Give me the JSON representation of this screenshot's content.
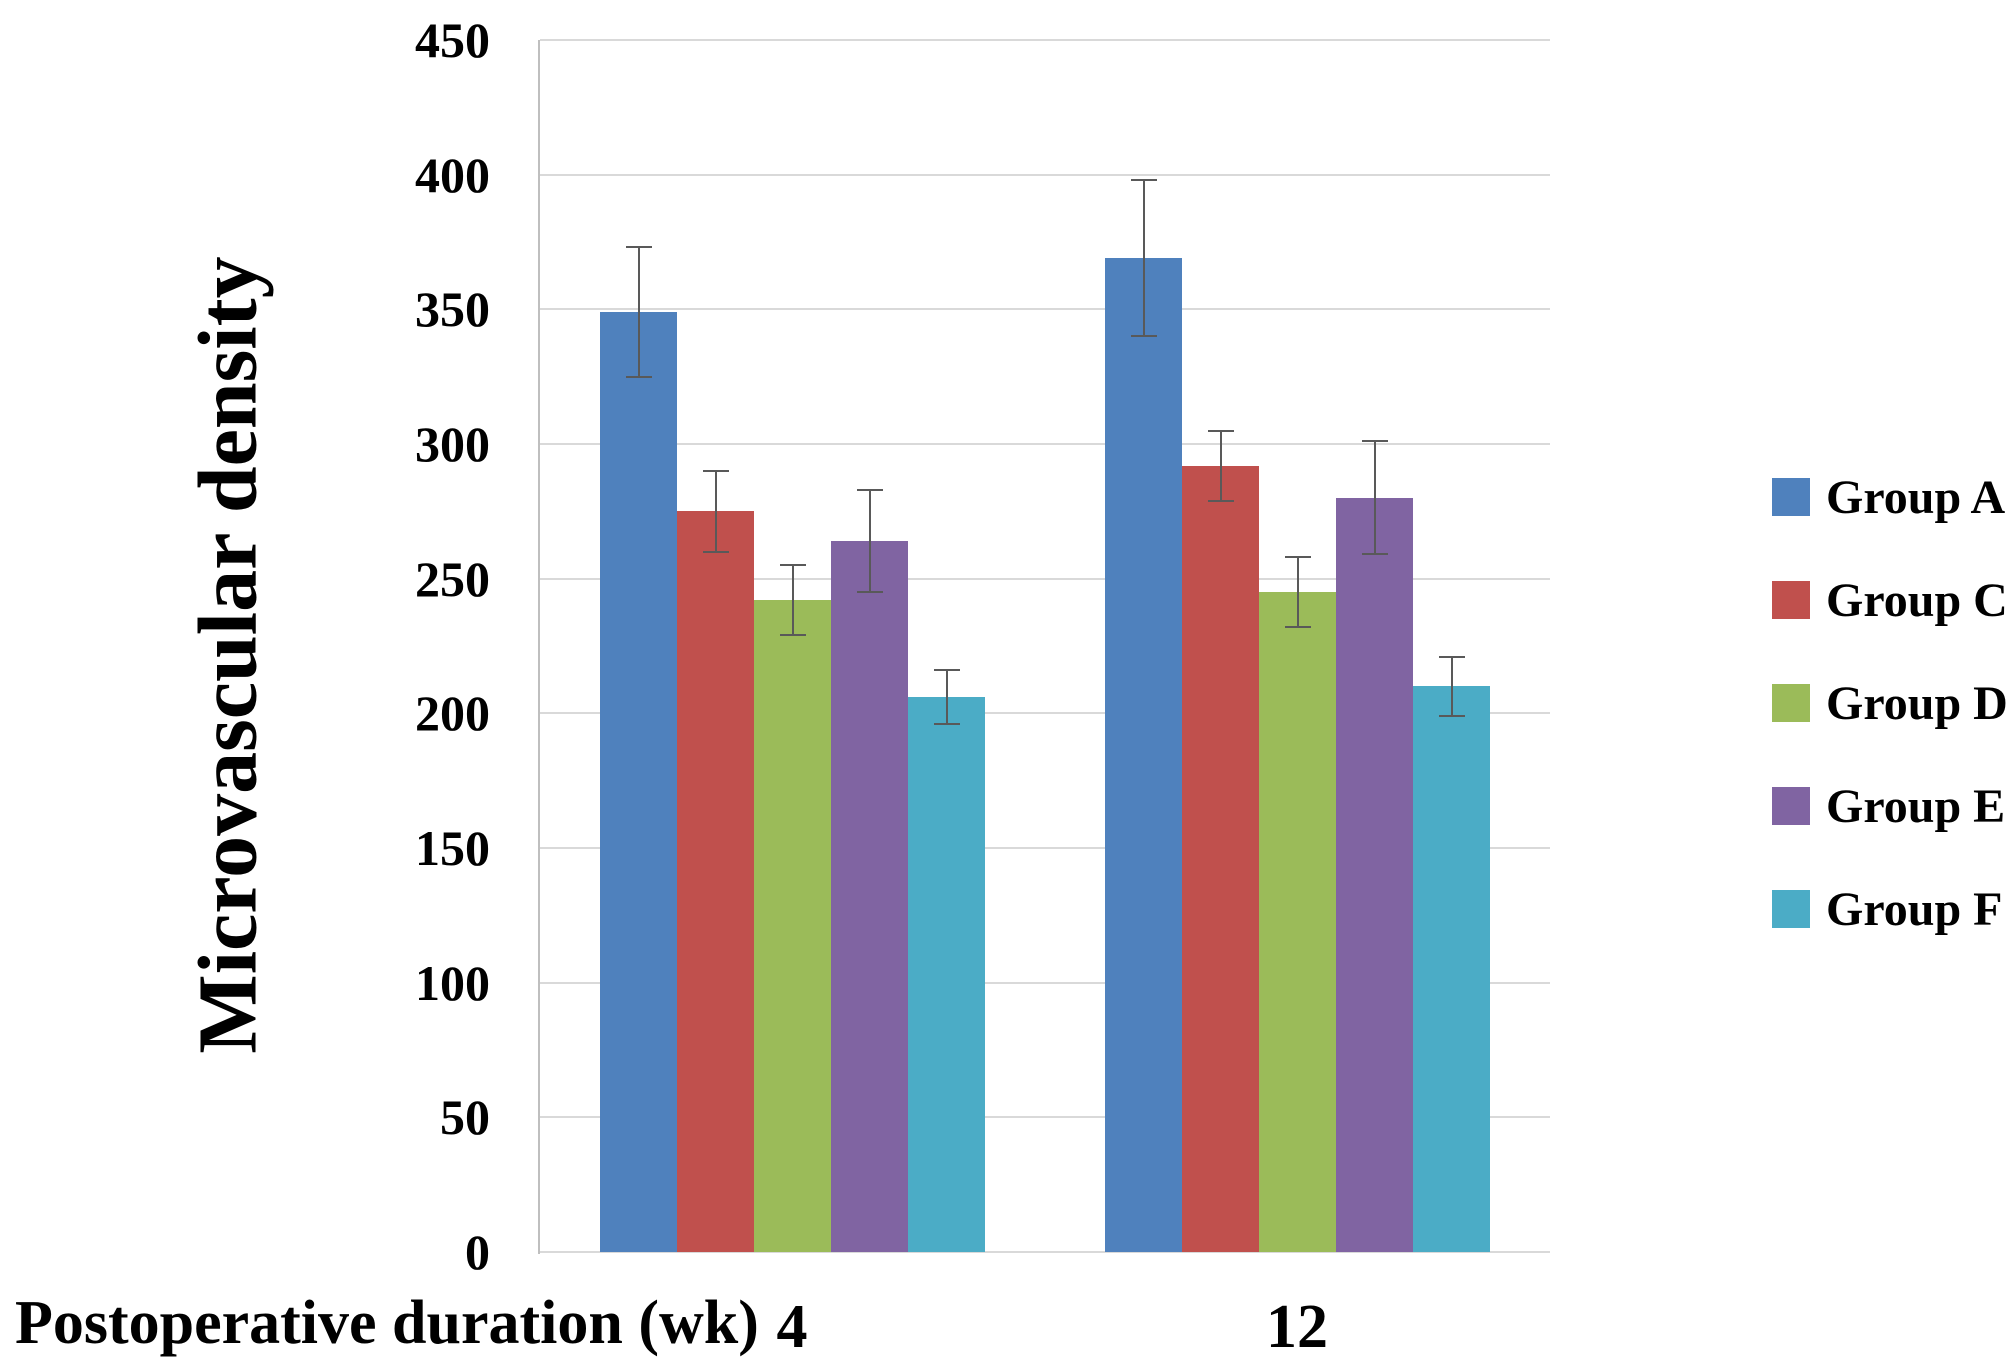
{
  "figure": {
    "background": "#FFFFFF"
  },
  "chart_data": {
    "type": "bar",
    "title": "",
    "ylabel": "Microvascular density",
    "xlabel": "Postoperative duration (wk)",
    "categories": [
      "4",
      "12"
    ],
    "series": [
      {
        "name": "Group A",
        "color": "#4F81BD",
        "values": [
          349,
          369
        ],
        "errors": [
          24,
          29
        ]
      },
      {
        "name": "Group C",
        "color": "#C0504D",
        "values": [
          275,
          292
        ],
        "errors": [
          15,
          13
        ]
      },
      {
        "name": "Group D",
        "color": "#9BBB59",
        "values": [
          242,
          245
        ],
        "errors": [
          13,
          13
        ]
      },
      {
        "name": "Group E",
        "color": "#8064A2",
        "values": [
          264,
          280
        ],
        "errors": [
          19,
          21
        ]
      },
      {
        "name": "Group F",
        "color": "#4BACC6",
        "values": [
          206,
          210
        ],
        "errors": [
          10,
          11
        ]
      }
    ],
    "ylim": [
      0,
      450
    ],
    "yticks": [
      0,
      50,
      100,
      150,
      200,
      250,
      300,
      350,
      400,
      450
    ],
    "grid": true,
    "error_bars": true,
    "legend_position": "right",
    "gridline_color": "#D9D9D9",
    "axis_line_color": "#BFBFBF",
    "error_bar_color": "#595959"
  }
}
